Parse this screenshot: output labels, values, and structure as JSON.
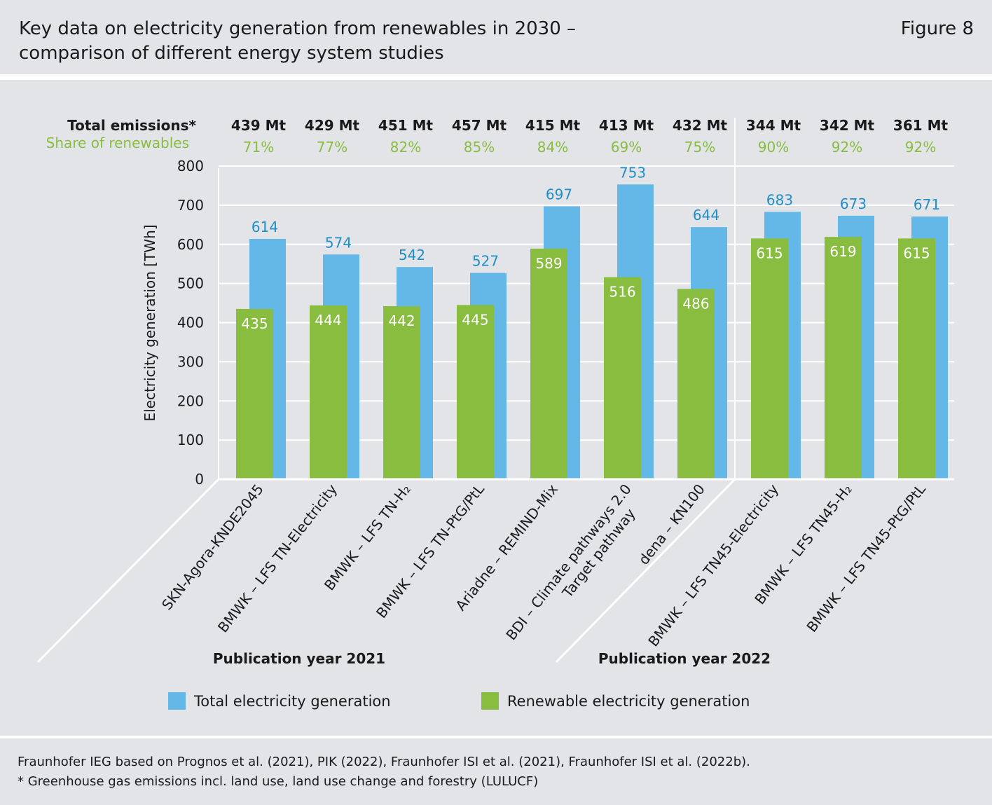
{
  "header": {
    "title_line1": "Key data on electricity generation from renewables in 2030 –",
    "title_line2": "comparison of different energy system studies",
    "figure_label": "Figure 8"
  },
  "chart_data": {
    "type": "bar",
    "ylabel": "Electricity generation  [TWh]",
    "ylim": [
      0,
      800
    ],
    "yticks": [
      0,
      100,
      200,
      300,
      400,
      500,
      600,
      700,
      800
    ],
    "grid": true,
    "row_labels": {
      "emissions": "Total emissions*",
      "share": "Share of renewables"
    },
    "categories": [
      {
        "line1": "SKN-Agora-KNDE2045"
      },
      {
        "line1": "BMWK – LFS TN-Electricity"
      },
      {
        "line1": "BMWK – LFS TN-H₂"
      },
      {
        "line1": "BMWK – LFS TN-PtG/PtL"
      },
      {
        "line1": "Ariadne – REMIND-Mix"
      },
      {
        "line1": "BDI – Climate pathways 2.0",
        "line2": "Target pathway"
      },
      {
        "line1": "dena – KN100"
      },
      {
        "line1": "BMWK – LFS TN45-Electricity"
      },
      {
        "line1": "BMWK – LFS TN45-H₂"
      },
      {
        "line1": "BMWK – LFS TN45-PtG/PtL"
      }
    ],
    "emissions": [
      "439 Mt",
      "429 Mt",
      "451 Mt",
      "457 Mt",
      "415 Mt",
      "413 Mt",
      "432 Mt",
      "344 Mt",
      "342 Mt",
      "361 Mt"
    ],
    "share_renewables": [
      "71%",
      "77%",
      "82%",
      "85%",
      "84%",
      "69%",
      "75%",
      "90%",
      "92%",
      "92%"
    ],
    "series": [
      {
        "name": "Total electricity generation",
        "color": "#63b8e8",
        "label_color": "#1f8ec7",
        "values": [
          614,
          574,
          542,
          527,
          697,
          753,
          644,
          683,
          673,
          671
        ]
      },
      {
        "name": "Renewable electricity generation",
        "color": "#88bd40",
        "label_color": "#ffffff",
        "values": [
          435,
          444,
          442,
          445,
          589,
          516,
          486,
          615,
          619,
          615
        ]
      }
    ],
    "groups": [
      {
        "label": "Publication year 2021",
        "count": 7
      },
      {
        "label": "Publication year 2022",
        "count": 3
      }
    ]
  },
  "colors": {
    "share_text": "#88bd40",
    "axis": "#ffffff",
    "background": "#e3e4e8"
  },
  "footer": {
    "source": "Fraunhofer IEG based on Prognos et al. (2021), PIK (2022), Fraunhofer ISI et al. (2021), Fraunhofer ISI et al. (2022b).",
    "note": "* Greenhouse gas emissions incl. land use, land use change and forestry (LULUCF)"
  }
}
